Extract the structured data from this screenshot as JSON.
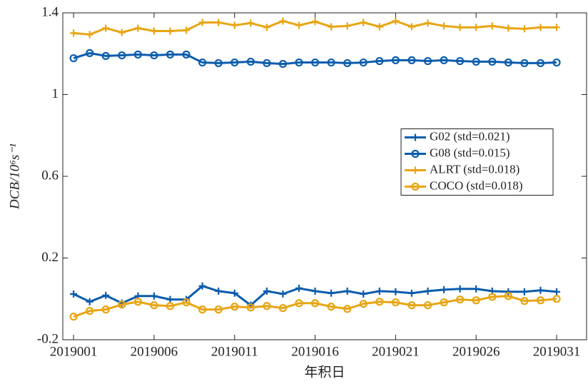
{
  "chart_data": {
    "type": "line",
    "x": [
      2019001,
      2019002,
      2019003,
      2019004,
      2019005,
      2019006,
      2019007,
      2019008,
      2019009,
      2019010,
      2019011,
      2019012,
      2019013,
      2019014,
      2019015,
      2019016,
      2019017,
      2019018,
      2019019,
      2019020,
      2019021,
      2019022,
      2019023,
      2019024,
      2019025,
      2019026,
      2019027,
      2019028,
      2019029,
      2019030,
      2019031
    ],
    "xlim": [
      2019000.33,
      2019032.86
    ],
    "xticks": [
      2019001,
      2019006,
      2019011,
      2019016,
      2019021,
      2019026,
      2019031
    ],
    "ylim": [
      -0.2,
      1.4
    ],
    "yticks": [
      -0.2,
      0.2,
      0.6,
      1,
      1.4
    ],
    "xlabel": "年积日",
    "ylabel": "DCB/10⁶s⁻¹",
    "legend": "center right",
    "series": [
      {
        "name": "G02 (std=0.021)",
        "color": "#0b5cad",
        "marker": "plus",
        "values": [
          0.024,
          -0.014,
          0.017,
          -0.021,
          0.014,
          0.014,
          -0.003,
          -0.003,
          0.063,
          0.038,
          0.028,
          -0.031,
          0.038,
          0.024,
          0.052,
          0.038,
          0.028,
          0.038,
          0.024,
          0.038,
          0.035,
          0.028,
          0.038,
          0.045,
          0.049,
          0.049,
          0.038,
          0.035,
          0.035,
          0.042,
          0.035
        ]
      },
      {
        "name": "G08 (std=0.015)",
        "color": "#0b5cad",
        "marker": "circle",
        "values": [
          1.178,
          1.203,
          1.189,
          1.192,
          1.196,
          1.192,
          1.196,
          1.196,
          1.157,
          1.154,
          1.157,
          1.161,
          1.154,
          1.15,
          1.157,
          1.157,
          1.157,
          1.154,
          1.157,
          1.164,
          1.168,
          1.168,
          1.164,
          1.168,
          1.164,
          1.161,
          1.161,
          1.157,
          1.154,
          1.154,
          1.157
        ]
      },
      {
        "name": "ALRT (std=0.018)",
        "color": "#e8a512",
        "marker": "plus",
        "values": [
          1.301,
          1.294,
          1.325,
          1.304,
          1.325,
          1.311,
          1.311,
          1.315,
          1.353,
          1.353,
          1.339,
          1.35,
          1.329,
          1.36,
          1.339,
          1.357,
          1.332,
          1.336,
          1.353,
          1.332,
          1.36,
          1.332,
          1.35,
          1.336,
          1.329,
          1.329,
          1.336,
          1.325,
          1.322,
          1.329,
          1.329
        ]
      },
      {
        "name": "COCO (std=0.018)",
        "color": "#e8a512",
        "marker": "circle",
        "values": [
          -0.087,
          -0.059,
          -0.052,
          -0.028,
          -0.014,
          -0.031,
          -0.035,
          -0.017,
          -0.052,
          -0.052,
          -0.038,
          -0.042,
          -0.035,
          -0.045,
          -0.021,
          -0.021,
          -0.038,
          -0.049,
          -0.024,
          -0.014,
          -0.017,
          -0.031,
          -0.031,
          -0.017,
          -0.003,
          -0.007,
          0.01,
          0.014,
          -0.01,
          -0.007,
          0
        ]
      }
    ]
  }
}
